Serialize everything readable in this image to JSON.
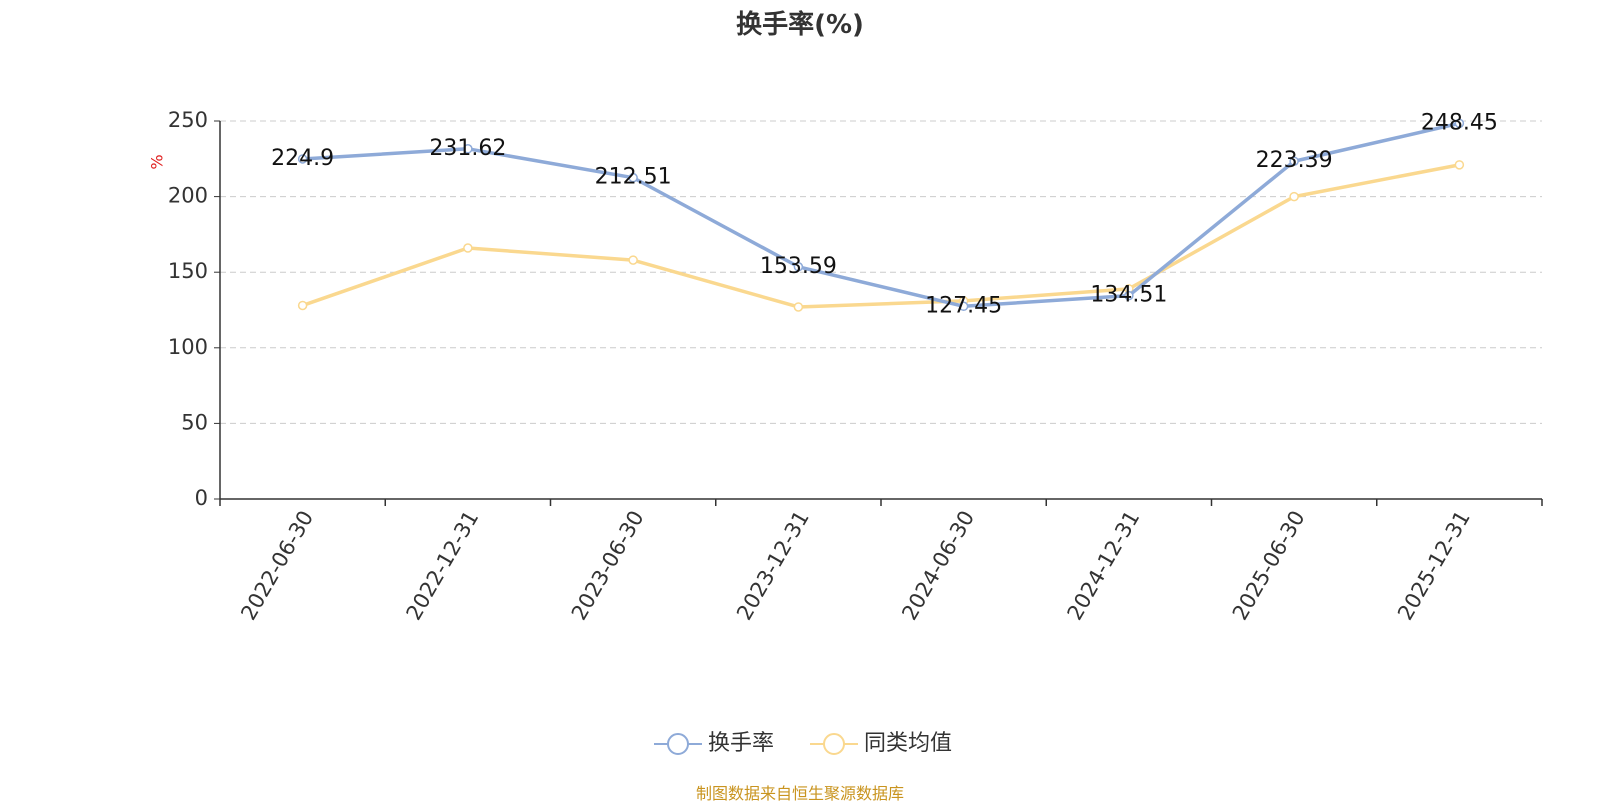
{
  "colors": {
    "series_primary": "#8eaad8",
    "series_secondary": "#fad88f",
    "axis": "#333333",
    "grid": "#cccccc",
    "unit_label": "#e02020",
    "footer": "#c9941f"
  },
  "chart_data": {
    "type": "line",
    "title": "换手率(%)",
    "ylabel": "%",
    "ylim": [
      0,
      250
    ],
    "yticks": [
      0,
      50,
      100,
      150,
      200,
      250
    ],
    "grid": true,
    "legend_position": "bottom-center",
    "categories": [
      "2022-06-30",
      "2022-12-31",
      "2023-06-30",
      "2023-12-31",
      "2024-06-30",
      "2024-12-31",
      "2025-06-30",
      "2025-12-31"
    ],
    "series": [
      {
        "name": "换手率",
        "values": [
          224.9,
          231.62,
          212.51,
          153.59,
          127.45,
          134.51,
          223.39,
          248.45
        ],
        "labels": [
          "224.9",
          "231.62",
          "212.51",
          "153.59",
          "127.45",
          "134.51",
          "223.39",
          "248.45"
        ],
        "color": "#8eaad8"
      },
      {
        "name": "同类均值",
        "values": [
          128,
          166,
          158,
          127,
          131,
          139,
          200,
          221
        ],
        "color": "#fad88f"
      }
    ]
  },
  "footer": {
    "source": "制图数据来自恒生聚源数据库"
  }
}
